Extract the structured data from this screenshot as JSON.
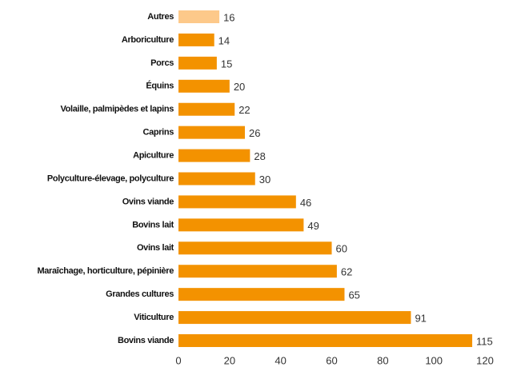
{
  "chart_data": {
    "type": "barh",
    "categories": [
      "Autres",
      "Arboriculture",
      "Porcs",
      "Équins",
      "Volaille, palmipèdes et lapins",
      "Caprins",
      "Apiculture",
      "Polyculture-élevage, polyculture",
      "Ovins viande",
      "Bovins lait",
      "Ovins lait",
      "Maraîchage, horticulture, pépinière",
      "Grandes cultures",
      "Viticulture",
      "Bovins viande"
    ],
    "values": [
      16,
      14,
      15,
      20,
      22,
      26,
      28,
      30,
      46,
      49,
      60,
      62,
      65,
      91,
      115
    ],
    "colors": [
      "#fdc98a",
      "#f39200",
      "#f39200",
      "#f39200",
      "#f39200",
      "#f39200",
      "#f39200",
      "#f39200",
      "#f39200",
      "#f39200",
      "#f39200",
      "#f39200",
      "#f39200",
      "#f39200",
      "#f39200"
    ],
    "xlim": [
      0,
      120
    ],
    "xticks": [
      0,
      20,
      40,
      60,
      80,
      100,
      120
    ],
    "grid": false
  }
}
